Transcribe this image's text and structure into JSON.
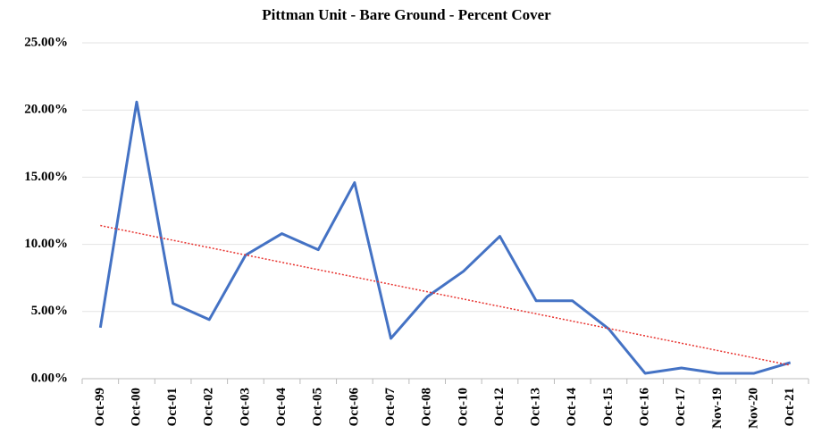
{
  "chart_data": {
    "type": "line",
    "title": "Pittman Unit - Bare Ground - Percent Cover",
    "categories": [
      "Oct-99",
      "Oct-00",
      "Oct-01",
      "Oct-02",
      "Oct-03",
      "Oct-04",
      "Oct-05",
      "Oct-06",
      "Oct-07",
      "Oct-08",
      "Oct-10",
      "Oct-12",
      "Oct-13",
      "Oct-14",
      "Oct-15",
      "Oct-16",
      "Oct-17",
      "Nov-19",
      "Nov-20",
      "Oct-21"
    ],
    "values": [
      3.8,
      20.6,
      5.6,
      4.4,
      9.2,
      10.8,
      9.6,
      14.6,
      3.0,
      6.1,
      8.0,
      10.6,
      5.8,
      5.8,
      3.7,
      0.4,
      0.8,
      0.4,
      0.4,
      1.2
    ],
    "color": "#4472c4",
    "trendline": {
      "from": 11.4,
      "to": 1.0,
      "color": "#e8332f"
    },
    "ylim": [
      0,
      25
    ],
    "yticks": [
      {
        "value": 0,
        "label": "0.00%"
      },
      {
        "value": 5,
        "label": "5.00%"
      },
      {
        "value": 10,
        "label": "10.00%"
      },
      {
        "value": 15,
        "label": "15.00%"
      },
      {
        "value": 20,
        "label": "20.00%"
      },
      {
        "value": 25,
        "label": "25.00%"
      }
    ],
    "grid": true
  }
}
